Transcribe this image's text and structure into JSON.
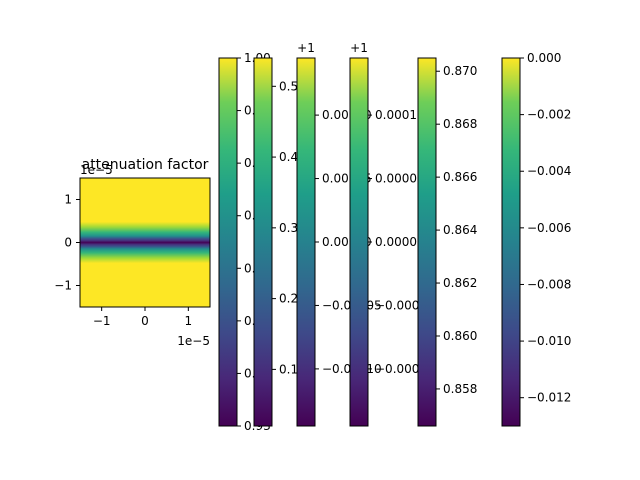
{
  "chart_data": [
    {
      "type": "heatmap",
      "title": "attenuation factor",
      "x_offset_text": "1e−5",
      "y_offset_text": "1e−5",
      "x_ticks": [
        {
          "v": -1,
          "label": "−1"
        },
        {
          "v": 0,
          "label": "0"
        },
        {
          "v": 1,
          "label": "1"
        }
      ],
      "y_ticks": [
        {
          "v": 1,
          "label": "1"
        },
        {
          "v": 0,
          "label": "0"
        },
        {
          "v": -1,
          "label": "−1"
        }
      ],
      "xlim": [
        -1.5,
        1.5
      ],
      "ylim": [
        -1.5,
        1.5
      ],
      "profile": "uniform along x; value 1.00 away from y = 0 dropping to about 0.93 in a narrow band centred on y = 0",
      "colormap": "viridis"
    },
    {
      "type": "colorbar",
      "ticks": [
        {
          "v": 1.0,
          "label": "1.00"
        },
        {
          "v": 0.99,
          "label": "0.99"
        },
        {
          "v": 0.98,
          "label": "0.98"
        },
        {
          "v": 0.97,
          "label": "0.97"
        },
        {
          "v": 0.96,
          "label": "0.96"
        },
        {
          "v": 0.95,
          "label": "0.95"
        },
        {
          "v": 0.94,
          "label": "0.94"
        },
        {
          "v": 0.93,
          "label": "0.93"
        }
      ],
      "range": [
        0.93,
        1.0
      ]
    },
    {
      "type": "colorbar",
      "ticks": [
        {
          "v": 0.5,
          "label": "0.5"
        },
        {
          "v": 0.4,
          "label": "0.4"
        },
        {
          "v": 0.3,
          "label": "0.3"
        },
        {
          "v": 0.2,
          "label": "0.2"
        },
        {
          "v": 0.1,
          "label": "0.1"
        }
      ],
      "range": [
        0.02,
        0.54
      ]
    },
    {
      "type": "colorbar",
      "offset_text": "+1",
      "ticks": [
        {
          "v": 0.0001,
          "label": "0.00010"
        },
        {
          "v": 5e-05,
          "label": "0.00005"
        },
        {
          "v": 0.0,
          "label": "0.00000"
        },
        {
          "v": -5e-05,
          "label": "−0.00005"
        },
        {
          "v": -0.0001,
          "label": "−0.00010"
        }
      ],
      "range": [
        -0.000145,
        0.000145
      ]
    },
    {
      "type": "colorbar",
      "offset_text": "+1",
      "ticks": [
        {
          "v": 0.0001,
          "label": "0.00010"
        },
        {
          "v": 5e-05,
          "label": "0.00005"
        },
        {
          "v": 0.0,
          "label": "0.00000"
        },
        {
          "v": -5e-05,
          "label": "−0.00005"
        },
        {
          "v": -0.0001,
          "label": "−0.00010"
        }
      ],
      "range": [
        -0.000145,
        0.000145
      ]
    },
    {
      "type": "colorbar",
      "ticks": [
        {
          "v": 0.87,
          "label": "0.870"
        },
        {
          "v": 0.868,
          "label": "0.868"
        },
        {
          "v": 0.866,
          "label": "0.866"
        },
        {
          "v": 0.864,
          "label": "0.864"
        },
        {
          "v": 0.862,
          "label": "0.862"
        },
        {
          "v": 0.86,
          "label": "0.860"
        },
        {
          "v": 0.858,
          "label": "0.858"
        }
      ],
      "range": [
        0.8566,
        0.8705
      ]
    },
    {
      "type": "colorbar",
      "ticks": [
        {
          "v": 0.0,
          "label": "0.000"
        },
        {
          "v": -0.002,
          "label": "−0.002"
        },
        {
          "v": -0.004,
          "label": "−0.004"
        },
        {
          "v": -0.006,
          "label": "−0.006"
        },
        {
          "v": -0.008,
          "label": "−0.008"
        },
        {
          "v": -0.01,
          "label": "−0.010"
        },
        {
          "v": -0.012,
          "label": "−0.012"
        }
      ],
      "range": [
        -0.013,
        0.0
      ]
    }
  ]
}
